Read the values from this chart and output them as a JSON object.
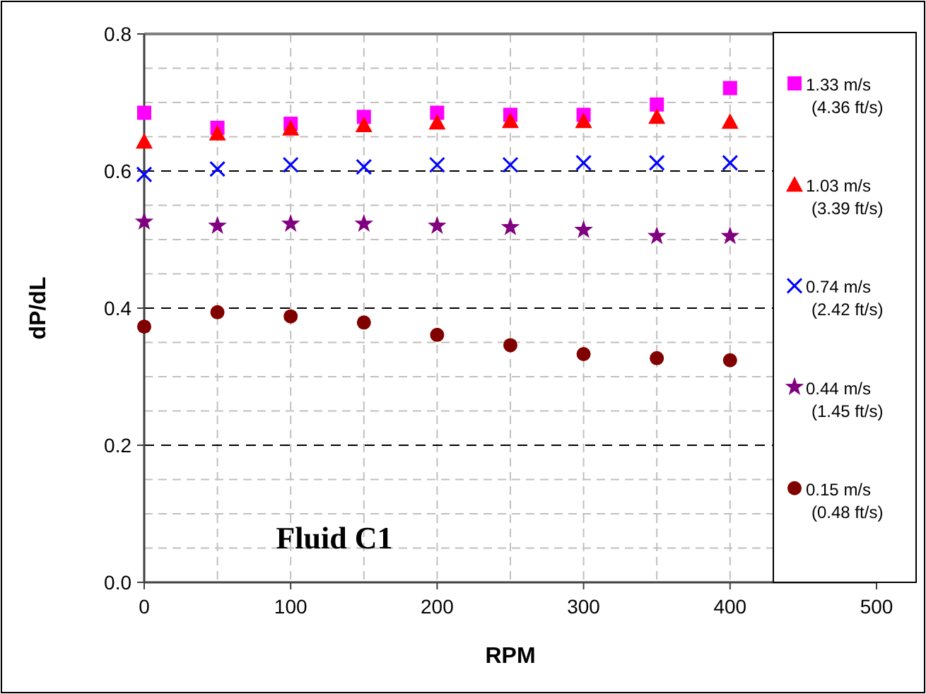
{
  "chart_data": {
    "type": "scatter",
    "xlabel": "RPM",
    "ylabel": "dP/dL",
    "x": [
      0,
      50,
      100,
      150,
      200,
      250,
      300,
      350,
      400
    ],
    "xlim": [
      0,
      500
    ],
    "xticks": [
      0,
      100,
      200,
      300,
      400,
      500
    ],
    "ylim": [
      0,
      0.8
    ],
    "yticks": [
      {
        "value": 0,
        "label": "0.0"
      },
      0.2,
      0.4,
      0.6,
      0.8
    ],
    "grid": true,
    "legend": "right",
    "annotations": [
      "Fluid C1"
    ],
    "series": [
      {
        "name": "1.33 m/s\n(4.36 ft/s)",
        "color": "#ff00ff",
        "marker": "square",
        "values": [
          0.685,
          0.663,
          0.669,
          0.679,
          0.685,
          0.682,
          0.682,
          0.697,
          0.721
        ]
      },
      {
        "name": "1.03 m/s\n(3.39 ft/s)",
        "color": "#ff0000",
        "marker": "triangle",
        "values": [
          0.643,
          0.655,
          0.662,
          0.667,
          0.671,
          0.673,
          0.673,
          0.679,
          0.672
        ]
      },
      {
        "name": "0.74 m/s\n(2.42 ft/s)",
        "color": "#0000ff",
        "marker": "cross",
        "values": [
          0.595,
          0.603,
          0.609,
          0.606,
          0.609,
          0.609,
          0.612,
          0.612,
          0.612
        ]
      },
      {
        "name": "0.44 m/s\n(1.45 ft/s)",
        "color": "#800080",
        "marker": "star",
        "values": [
          0.526,
          0.52,
          0.523,
          0.523,
          0.52,
          0.518,
          0.514,
          0.505,
          0.505
        ]
      },
      {
        "name": "0.15 m/s\n(0.48 ft/s)",
        "color": "#800000",
        "marker": "circle",
        "values": [
          0.373,
          0.394,
          0.388,
          0.379,
          0.361,
          0.346,
          0.333,
          0.327,
          0.324
        ]
      }
    ]
  }
}
